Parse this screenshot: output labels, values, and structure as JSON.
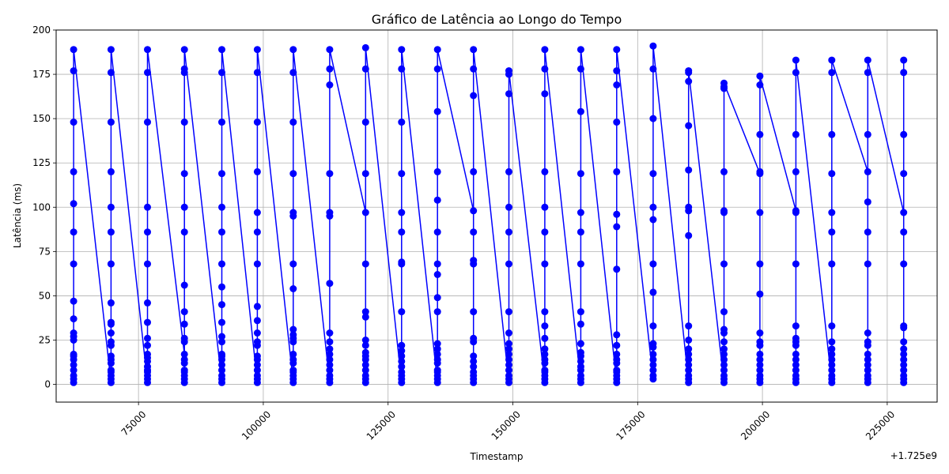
{
  "chart_data": {
    "type": "line",
    "title": "Gráfico de Latência ao Longo do Tempo",
    "xlabel": "Timestamp",
    "ylabel": "Latência (ms)",
    "x_offset_label": "+1.725e9",
    "x_offset": 1725000000,
    "xlim": [
      58500,
      235000
    ],
    "ylim": [
      -10,
      200
    ],
    "x_ticks": [
      75000,
      100000,
      125000,
      150000,
      175000,
      200000,
      225000
    ],
    "x_tick_labels": [
      "75000",
      "100000",
      "125000",
      "150000",
      "175000",
      "200000",
      "225000"
    ],
    "y_ticks": [
      0,
      25,
      50,
      75,
      100,
      125,
      150,
      175,
      200
    ],
    "y_tick_labels": [
      "0",
      "25",
      "50",
      "75",
      "100",
      "125",
      "150",
      "175",
      "200"
    ],
    "grid": true,
    "color": "#0000ff",
    "marker": "circle",
    "series": [
      {
        "name": "Latência",
        "bursts": [
          {
            "x": 62000,
            "values": [
              1,
              3,
              5,
              8,
              11,
              14,
              16,
              17,
              25,
              27,
              29,
              37,
              47,
              68,
              86,
              102,
              120,
              148,
              177,
              189
            ]
          },
          {
            "x": 69500,
            "values": [
              1,
              3,
              5,
              7,
              8,
              12,
              14,
              16,
              22,
              24,
              29,
              34,
              35,
              46,
              68,
              86,
              100,
              120,
              148,
              176,
              189
            ]
          },
          {
            "x": 76800,
            "values": [
              1,
              3,
              5,
              7,
              8,
              10,
              13,
              15,
              17,
              22,
              26,
              35,
              46,
              68,
              86,
              100,
              148,
              176,
              189
            ]
          },
          {
            "x": 84200,
            "values": [
              17,
              1,
              3,
              5,
              7,
              8,
              12,
              14,
              24,
              26,
              34,
              41,
              56,
              86,
              100,
              119,
              148,
              176,
              178,
              189
            ]
          },
          {
            "x": 91700,
            "values": [
              1,
              3,
              5,
              8,
              11,
              14,
              16,
              17,
              24,
              27,
              35,
              45,
              55,
              68,
              86,
              100,
              119,
              148,
              176,
              189
            ]
          },
          {
            "x": 98800,
            "values": [
              1,
              3,
              5,
              8,
              11,
              14,
              16,
              22,
              24,
              29,
              36,
              44,
              68,
              86,
              97,
              120,
              148,
              176,
              189
            ]
          },
          {
            "x": 106000,
            "values": [
              1,
              3,
              5,
              7,
              8,
              12,
              14,
              17,
              24,
              26,
              28,
              31,
              54,
              68,
              95,
              97,
              119,
              148,
              176,
              189
            ]
          },
          {
            "x": 113300,
            "values": [
              1,
              3,
              5,
              8,
              11,
              14,
              17,
              20,
              24,
              29,
              57,
              95,
              97,
              119,
              169,
              178,
              189
            ]
          },
          {
            "x": 120500,
            "values": [
              97,
              1,
              3,
              5,
              8,
              11,
              14,
              16,
              18,
              22,
              25,
              38,
              41,
              68,
              119,
              148,
              178,
              190
            ]
          },
          {
            "x": 127700,
            "values": [
              1,
              3,
              5,
              7,
              10,
              13,
              16,
              19,
              22,
              41,
              68,
              69,
              86,
              97,
              119,
              148,
              178,
              189
            ]
          },
          {
            "x": 134900,
            "values": [
              1,
              3,
              5,
              7,
              8,
              12,
              14,
              17,
              20,
              23,
              41,
              49,
              62,
              68,
              86,
              104,
              120,
              154,
              178,
              189
            ]
          },
          {
            "x": 142100,
            "values": [
              98,
              1,
              3,
              5,
              7,
              10,
              13,
              16,
              24,
              26,
              41,
              68,
              70,
              86,
              120,
              163,
              178,
              189
            ]
          },
          {
            "x": 149200,
            "values": [
              1,
              3,
              5,
              8,
              11,
              14,
              17,
              20,
              23,
              29,
              41,
              68,
              86,
              100,
              120,
              164,
              175,
              177
            ]
          },
          {
            "x": 156400,
            "values": [
              1,
              3,
              5,
              7,
              8,
              12,
              14,
              17,
              20,
              26,
              33,
              41,
              68,
              86,
              100,
              120,
              164,
              178,
              189
            ]
          },
          {
            "x": 163600,
            "values": [
              1,
              3,
              5,
              8,
              10,
              13,
              16,
              18,
              23,
              34,
              41,
              68,
              86,
              97,
              119,
              154,
              178,
              189
            ]
          },
          {
            "x": 170800,
            "values": [
              1,
              3,
              5,
              7,
              8,
              12,
              14,
              17,
              22,
              28,
              65,
              89,
              96,
              120,
              148,
              169,
              177,
              189
            ]
          },
          {
            "x": 178100,
            "values": [
              3,
              5,
              8,
              11,
              14,
              17,
              21,
              23,
              33,
              52,
              68,
              93,
              100,
              119,
              150,
              178,
              191
            ]
          },
          {
            "x": 185200,
            "values": [
              1,
              3,
              5,
              8,
              11,
              14,
              17,
              20,
              25,
              33,
              84,
              98,
              100,
              121,
              146,
              171,
              176,
              177
            ]
          },
          {
            "x": 192300,
            "values": [
              1,
              3,
              5,
              8,
              11,
              14,
              17,
              20,
              24,
              29,
              31,
              41,
              68,
              97,
              98,
              120,
              167,
              168,
              170
            ]
          },
          {
            "x": 199500,
            "values": [
              119,
              1,
              3,
              5,
              8,
              11,
              14,
              17,
              22,
              24,
              29,
              51,
              68,
              97,
              120,
              141,
              169,
              174
            ]
          },
          {
            "x": 206700,
            "values": [
              98,
              1,
              3,
              5,
              8,
              11,
              14,
              17,
              22,
              24,
              26,
              33,
              68,
              97,
              120,
              141,
              176,
              183
            ]
          },
          {
            "x": 213900,
            "values": [
              1,
              3,
              5,
              8,
              11,
              14,
              17,
              20,
              24,
              33,
              68,
              86,
              97,
              119,
              141,
              176,
              183
            ]
          },
          {
            "x": 221100,
            "values": [
              120,
              1,
              3,
              5,
              8,
              11,
              14,
              17,
              22,
              24,
              29,
              68,
              86,
              103,
              141,
              176,
              183
            ]
          },
          {
            "x": 228300,
            "values": [
              97,
              1,
              3,
              5,
              8,
              11,
              14,
              17,
              20,
              24,
              32,
              33,
              68,
              86,
              119,
              141,
              176,
              183
            ]
          }
        ]
      }
    ]
  }
}
